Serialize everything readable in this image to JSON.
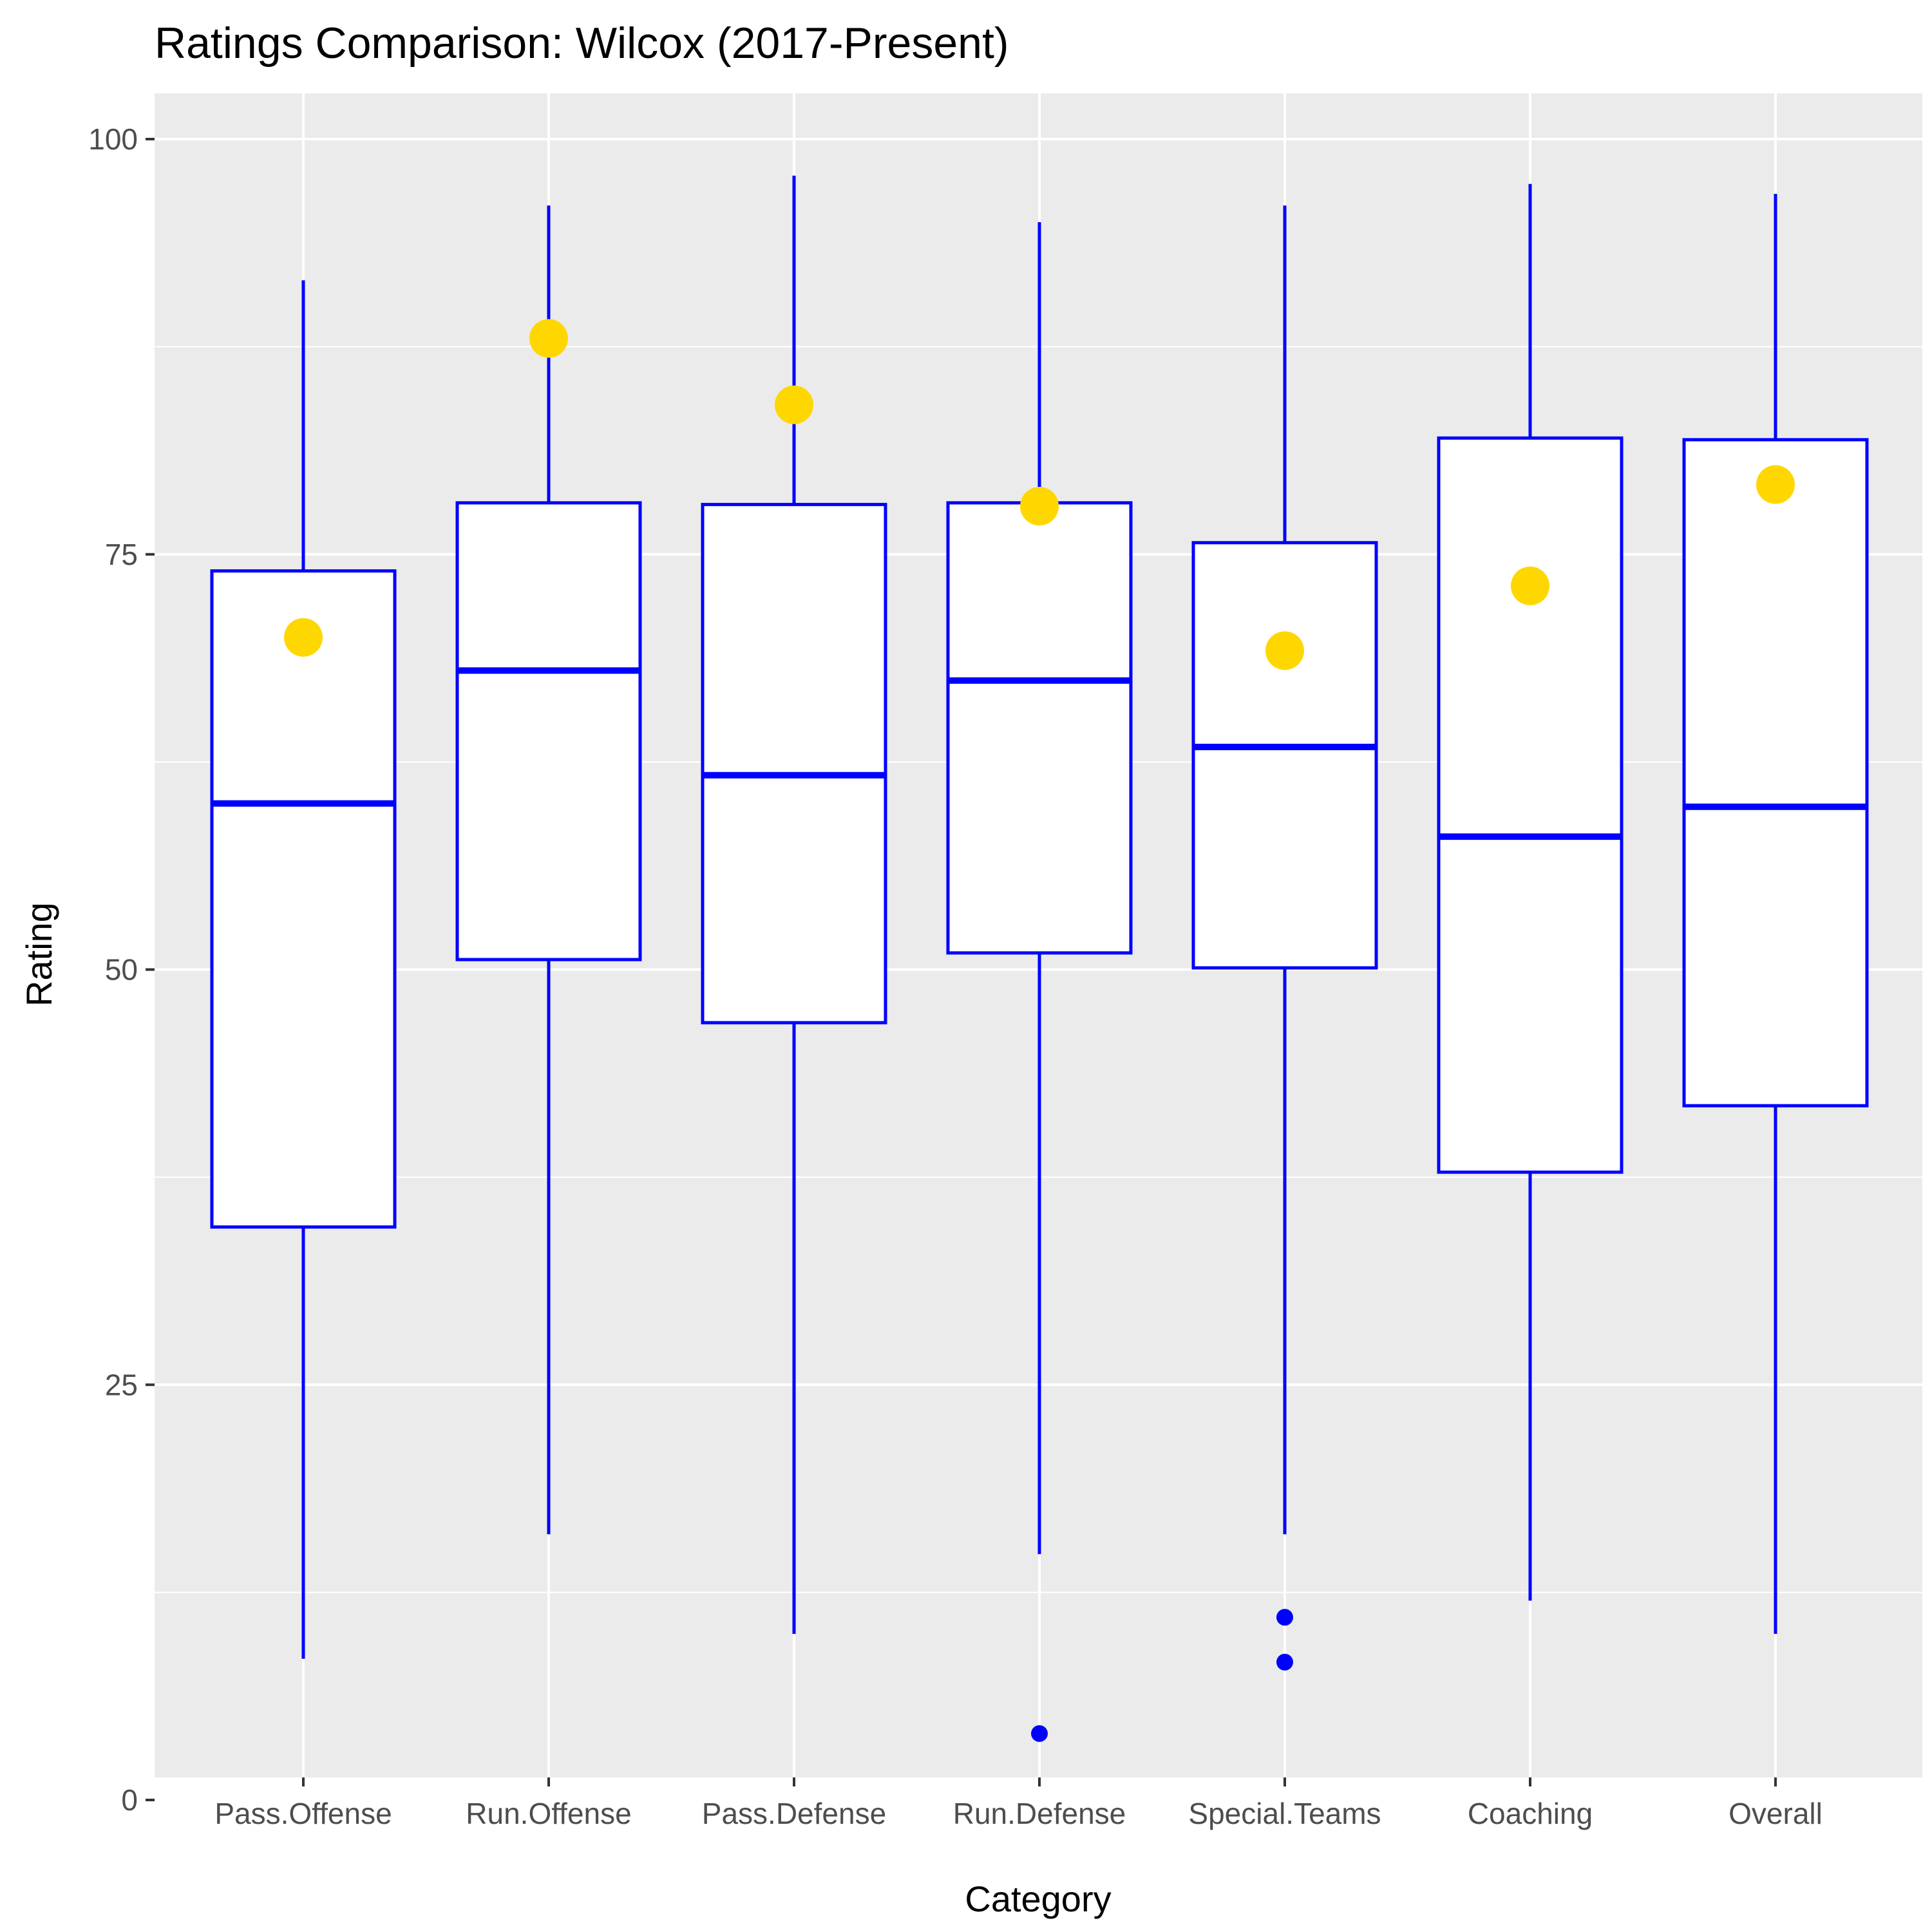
{
  "chart_data": {
    "type": "boxplot",
    "title": "Ratings Comparison: Wilcox (2017-Present)",
    "xlabel": "Category",
    "ylabel": "Rating",
    "ylim": [
      0,
      100
    ],
    "yticks": [
      0,
      25,
      50,
      75,
      100
    ],
    "grid": true,
    "categories": [
      "Pass.Offense",
      "Run.Offense",
      "Pass.Defense",
      "Run.Defense",
      "Special.Teams",
      "Coaching",
      "Overall"
    ],
    "boxes": [
      {
        "category": "Pass.Offense",
        "whisker_low": 8.5,
        "q1": 34.5,
        "median": 60.0,
        "q3": 74.0,
        "whisker_high": 91.5,
        "outliers": []
      },
      {
        "category": "Run.Offense",
        "whisker_low": 16.0,
        "q1": 50.6,
        "median": 68.0,
        "q3": 78.1,
        "whisker_high": 96.0,
        "outliers": []
      },
      {
        "category": "Pass.Defense",
        "whisker_low": 10.0,
        "q1": 46.8,
        "median": 61.7,
        "q3": 78.0,
        "whisker_high": 97.8,
        "outliers": []
      },
      {
        "category": "Run.Defense",
        "whisker_low": 14.8,
        "q1": 51.0,
        "median": 67.4,
        "q3": 78.1,
        "whisker_high": 95.0,
        "outliers": [
          4.0
        ]
      },
      {
        "category": "Special.Teams",
        "whisker_low": 16.0,
        "q1": 50.1,
        "median": 63.4,
        "q3": 75.7,
        "whisker_high": 96.0,
        "outliers": [
          11.0,
          8.3
        ]
      },
      {
        "category": "Coaching",
        "whisker_low": 12.0,
        "q1": 37.8,
        "median": 58.0,
        "q3": 82.0,
        "whisker_high": 97.3,
        "outliers": []
      },
      {
        "category": "Overall",
        "whisker_low": 10.0,
        "q1": 41.8,
        "median": 59.8,
        "q3": 81.9,
        "whisker_high": 96.7,
        "outliers": []
      }
    ],
    "highlight_points": [
      {
        "category": "Pass.Offense",
        "value": 70.0
      },
      {
        "category": "Run.Offense",
        "value": 88.0
      },
      {
        "category": "Pass.Defense",
        "value": 84.0
      },
      {
        "category": "Run.Defense",
        "value": 77.9
      },
      {
        "category": "Special.Teams",
        "value": 69.2
      },
      {
        "category": "Coaching",
        "value": 73.1
      },
      {
        "category": "Overall",
        "value": 79.2
      }
    ],
    "colors": {
      "panel_background": "#ebebeb",
      "grid": "#ffffff",
      "box_line": "#0000ff",
      "box_fill": "#ffffff",
      "highlight": "#ffd700",
      "outlier": "#0000ff"
    }
  }
}
